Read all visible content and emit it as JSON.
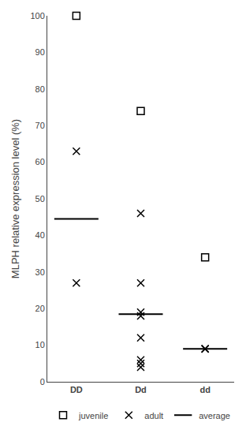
{
  "chart_data": {
    "type": "scatter",
    "categories": [
      "DD",
      "Dd",
      "dd"
    ],
    "ylabel": "MLPH relative expression level (%)",
    "series": [
      {
        "name": "juvenile",
        "marker": "square",
        "color": "#000000",
        "values": [
          [
            100
          ],
          [
            74
          ],
          [
            34
          ]
        ]
      },
      {
        "name": "adult",
        "marker": "x",
        "color": "#000000",
        "values": [
          [
            63,
            27
          ],
          [
            46,
            27,
            19,
            18,
            12,
            6,
            5,
            4
          ],
          [
            9,
            9,
            9
          ]
        ]
      },
      {
        "name": "average",
        "marker": "line",
        "color": "#000000",
        "values": [
          44.5,
          18.5,
          9
        ]
      }
    ],
    "ylim": [
      0,
      100
    ],
    "yticks": [
      0,
      10,
      20,
      30,
      40,
      50,
      60,
      70,
      80,
      90,
      100
    ],
    "grid": false,
    "legend": "lower center"
  }
}
